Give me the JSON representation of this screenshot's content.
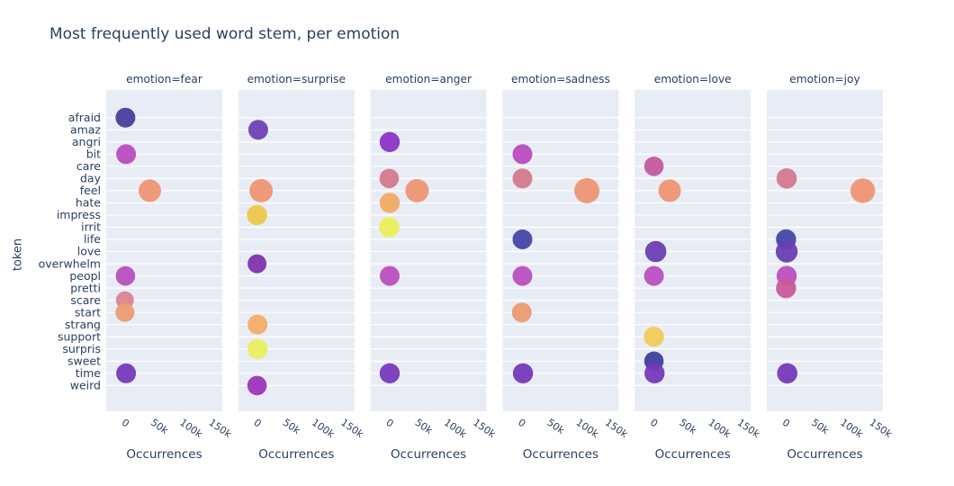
{
  "title": "Most frequently used word stem, per emotion",
  "colors": {
    "page_bg": "#ffffff",
    "panel_bg": "#e8edf5",
    "grid": "#ffffff",
    "text": "#2a3f5f"
  },
  "chart_data": {
    "type": "scatter",
    "title": "Most frequently used word stem, per emotion",
    "xlabel": "Occurrences",
    "ylabel": "token",
    "xlim": [
      -30000,
      170000
    ],
    "x_ticks": [
      "0",
      "50k",
      "100k",
      "150k"
    ],
    "x_tick_values": [
      0,
      50000,
      100000,
      150000
    ],
    "grid": "horizontal-white-on-lavender",
    "legend": "none",
    "tokens": [
      "afraid",
      "amaz",
      "angri",
      "bit",
      "care",
      "day",
      "feel",
      "hate",
      "impress",
      "irrit",
      "life",
      "love",
      "overwhelm",
      "peopl",
      "pretti",
      "scare",
      "start",
      "strang",
      "support",
      "surpris",
      "sweet",
      "time",
      "weird"
    ],
    "token_colors": {
      "afraid": "#4a3f9f",
      "amaz": "#7040b4",
      "angri": "#8d34c6",
      "bit": "#bb4cc1",
      "care": "#c3589e",
      "day": "#d5798c",
      "feel": "#ee9673",
      "hate": "#f2aa63",
      "impress": "#f0c64f",
      "irrit": "#e9ef59",
      "life": "#4347a8",
      "love": "#6a3fb2",
      "overwhelm": "#7e35af",
      "peopl": "#bb50bf",
      "pretti": "#c85a9b",
      "scare": "#dd8492",
      "start": "#ec9c73",
      "strang": "#f3ad66",
      "support": "#f2cb57",
      "surpris": "#e9ef5e",
      "sweet": "#3f3f9f",
      "time": "#7739bb",
      "weird": "#9c35bb"
    },
    "facets": [
      {
        "label": "emotion=fear",
        "emotion": "fear",
        "points": [
          {
            "token": "afraid",
            "occurrences": 3000,
            "r": 11
          },
          {
            "token": "bit",
            "occurrences": 4000,
            "r": 11
          },
          {
            "token": "feel",
            "occurrences": 45000,
            "r": 12.5
          },
          {
            "token": "peopl",
            "occurrences": 3000,
            "r": 10.8
          },
          {
            "token": "scare",
            "occurrences": 2000,
            "r": 10
          },
          {
            "token": "start",
            "occurrences": 2000,
            "r": 10.5
          },
          {
            "token": "time",
            "occurrences": 4000,
            "r": 11
          }
        ]
      },
      {
        "label": "emotion=surprise",
        "emotion": "surprise",
        "points": [
          {
            "token": "amaz",
            "occurrences": 4000,
            "r": 11
          },
          {
            "token": "feel",
            "occurrences": 9000,
            "r": 13
          },
          {
            "token": "impress",
            "occurrences": 2000,
            "r": 11.3
          },
          {
            "token": "overwhelm",
            "occurrences": 2000,
            "r": 10.5
          },
          {
            "token": "strang",
            "occurrences": 3000,
            "r": 11
          },
          {
            "token": "surpris",
            "occurrences": 3000,
            "r": 11.2
          },
          {
            "token": "weird",
            "occurrences": 2000,
            "r": 10.8
          }
        ]
      },
      {
        "label": "emotion=anger",
        "emotion": "anger",
        "points": [
          {
            "token": "angri",
            "occurrences": 3000,
            "r": 11.2
          },
          {
            "token": "day",
            "occurrences": 2000,
            "r": 10.8
          },
          {
            "token": "feel",
            "occurrences": 50000,
            "r": 13
          },
          {
            "token": "hate",
            "occurrences": 3000,
            "r": 11.2
          },
          {
            "token": "irrit",
            "occurrences": 2000,
            "r": 11.2
          },
          {
            "token": "peopl",
            "occurrences": 3000,
            "r": 11
          },
          {
            "token": "time",
            "occurrences": 3000,
            "r": 11.2
          }
        ]
      },
      {
        "label": "emotion=sadness",
        "emotion": "sadness",
        "points": [
          {
            "token": "bit",
            "occurrences": 4000,
            "r": 11
          },
          {
            "token": "day",
            "occurrences": 4000,
            "r": 11
          },
          {
            "token": "feel",
            "occurrences": 115000,
            "r": 14
          },
          {
            "token": "life",
            "occurrences": 4000,
            "r": 11
          },
          {
            "token": "peopl",
            "occurrences": 4000,
            "r": 11
          },
          {
            "token": "start",
            "occurrences": 3000,
            "r": 11
          },
          {
            "token": "time",
            "occurrences": 5000,
            "r": 11.2
          }
        ]
      },
      {
        "label": "emotion=love",
        "emotion": "love",
        "points": [
          {
            "token": "care",
            "occurrences": 3000,
            "r": 10.8
          },
          {
            "token": "feel",
            "occurrences": 30000,
            "r": 12.5
          },
          {
            "token": "love",
            "occurrences": 6000,
            "r": 11.8
          },
          {
            "token": "peopl",
            "occurrences": 3000,
            "r": 11
          },
          {
            "token": "support",
            "occurrences": 3000,
            "r": 11.2
          },
          {
            "token": "sweet",
            "occurrences": 3000,
            "r": 10.8
          },
          {
            "token": "time",
            "occurrences": 4000,
            "r": 11.2
          }
        ]
      },
      {
        "label": "emotion=joy",
        "emotion": "joy",
        "points": [
          {
            "token": "day",
            "occurrences": 4000,
            "r": 11.3
          },
          {
            "token": "feel",
            "occurrences": 135000,
            "r": 13.7
          },
          {
            "token": "life",
            "occurrences": 3000,
            "r": 11.2
          },
          {
            "token": "love",
            "occurrences": 4000,
            "r": 12.2
          },
          {
            "token": "peopl",
            "occurrences": 4000,
            "r": 11.2
          },
          {
            "token": "pretti",
            "occurrences": 3000,
            "r": 11.2
          },
          {
            "token": "time",
            "occurrences": 5000,
            "r": 11.3
          }
        ]
      }
    ]
  }
}
